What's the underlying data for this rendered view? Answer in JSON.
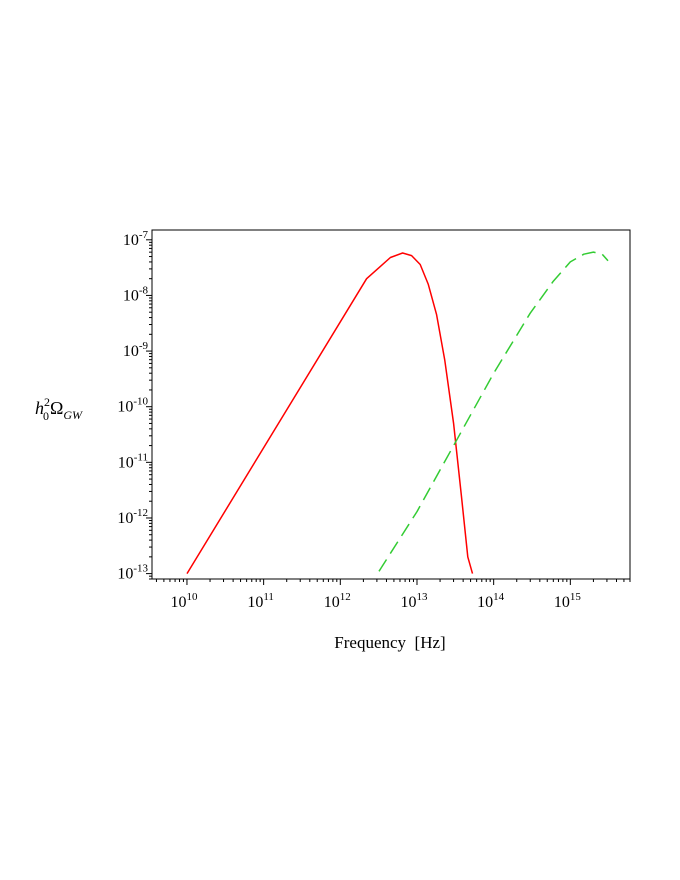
{
  "chart_data": {
    "type": "line",
    "xlabel": "Frequency  [Hz]",
    "ylabel": {
      "base": "h",
      "sup": "2",
      "sub": "0",
      "symbol": "Ω",
      "symbol_sub": "GW"
    },
    "x_scale": "log",
    "y_scale": "log",
    "xlim": [
      3500000000.0,
      6000000000000000.0
    ],
    "ylim": [
      8e-14,
      1.5e-07
    ],
    "x_ticks": [
      {
        "base": "10",
        "exp": "10",
        "value": 10000000000.0
      },
      {
        "base": "10",
        "exp": "11",
        "value": 100000000000.0
      },
      {
        "base": "10",
        "exp": "12",
        "value": 1000000000000.0
      },
      {
        "base": "10",
        "exp": "13",
        "value": 10000000000000.0
      },
      {
        "base": "10",
        "exp": "14",
        "value": 100000000000000.0
      },
      {
        "base": "10",
        "exp": "15",
        "value": 1000000000000000.0
      }
    ],
    "y_ticks": [
      {
        "base": "10",
        "exp": "-7",
        "value": 1e-07
      },
      {
        "base": "10",
        "exp": "-8",
        "value": 1e-08
      },
      {
        "base": "10",
        "exp": "-9",
        "value": 1e-09
      },
      {
        "base": "10",
        "exp": "-10",
        "value": 1e-10
      },
      {
        "base": "10",
        "exp": "-11",
        "value": 1e-11
      },
      {
        "base": "10",
        "exp": "-12",
        "value": 1e-12
      },
      {
        "base": "10",
        "exp": "-13",
        "value": 1e-13
      }
    ],
    "grid": false,
    "legend": "none",
    "series": [
      {
        "color": "#ff0000",
        "dash": "solid",
        "x": [
          10000000000.0,
          2200000000000.0,
          4500000000000.0,
          6500000000000.0,
          8500000000000.0,
          11000000000000.0,
          14000000000000.0,
          18000000000000.0,
          23000000000000.0,
          30000000000000.0,
          38000000000000.0,
          46000000000000.0,
          53000000000000.0
        ],
        "y": [
          1e-13,
          2e-08,
          4.8e-08,
          5.8e-08,
          5.2e-08,
          3.6e-08,
          1.6e-08,
          4.5e-09,
          7e-10,
          5e-11,
          2.5e-12,
          2e-13,
          1e-13
        ]
      },
      {
        "color": "#33cc33",
        "dash": "dashed",
        "x": [
          3200000000000.0,
          10000000000000.0,
          30000000000000.0,
          100000000000000.0,
          300000000000000.0,
          600000000000000.0,
          1000000000000000.0,
          1500000000000000.0,
          2000000000000000.0,
          2600000000000000.0,
          3100000000000000.0
        ],
        "y": [
          1.1e-13,
          1.3e-12,
          2e-11,
          4e-10,
          4.8e-09,
          1.8e-08,
          4e-08,
          5.5e-08,
          6e-08,
          5.5e-08,
          4.2e-08
        ]
      }
    ]
  }
}
